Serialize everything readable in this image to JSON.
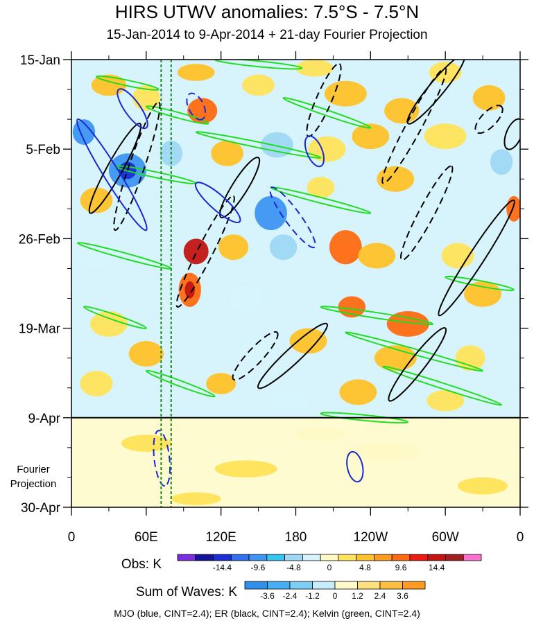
{
  "title": "HIRS UTWV anomalies: 7.5°S - 7.5°N",
  "subtitle": "15-Jan-2014 to 9-Apr-2014 + 21-day Fourier Projection",
  "footer": "MJO (blue, CINT=2.4); ER (black, CINT=2.4); Kelvin (green, CINT=2.4)",
  "projection_label": [
    "Fourier",
    "Projection"
  ],
  "chart_data": {
    "type": "heatmap",
    "title": "HIRS UTWV anomalies: 7.5°S - 7.5°N",
    "subtitle": "15-Jan-2014 to 9-Apr-2014 + 21-day Fourier Projection",
    "x_ticks": [
      {
        "label": "0",
        "lon": 0
      },
      {
        "label": "60E",
        "lon": 60
      },
      {
        "label": "120E",
        "lon": 120
      },
      {
        "label": "180",
        "lon": 180
      },
      {
        "label": "120W",
        "lon": 240
      },
      {
        "label": "60W",
        "lon": 300
      },
      {
        "label": "0",
        "lon": 360
      }
    ],
    "y_ticks": [
      {
        "label": "15-Jan",
        "day": 0
      },
      {
        "label": "5-Feb",
        "day": 21
      },
      {
        "label": "26-Feb",
        "day": 42
      },
      {
        "label": "19-Mar",
        "day": 63
      },
      {
        "label": "9-Apr",
        "day": 84
      },
      {
        "label": "30-Apr",
        "day": 105
      }
    ],
    "x_range": [
      0,
      360
    ],
    "y_range_days": [
      0,
      105
    ],
    "projection_start_day": 84,
    "reference_lons": [
      72,
      80
    ],
    "colorbars": [
      {
        "label": "Obs: K",
        "tick_labels": [
          "-14.4",
          "-9.6",
          "-4.8",
          "0",
          "4.8",
          "9.6",
          "14.4"
        ],
        "colors": [
          "#7b2ee0",
          "#14149a",
          "#1a2fd6",
          "#2f6ff0",
          "#3e95f2",
          "#36c5f0",
          "#9fd7f4",
          "#d7f4fc",
          "#fff9c4",
          "#ffe35a",
          "#ffc229",
          "#ff9a1f",
          "#ff6a10",
          "#ee1b13",
          "#c21414",
          "#a31e1e",
          "#ff6fcf"
        ]
      },
      {
        "label": "Sum of Waves: K",
        "tick_labels": [
          "-3.6",
          "-2.4",
          "-1.2",
          "0",
          "1.2",
          "2.4",
          "3.6"
        ],
        "colors": [
          "#2f8fe9",
          "#48aef3",
          "#7fcdf6",
          "#c7ecfb",
          "#fffbc9",
          "#ffe07e",
          "#ffbf43",
          "#ff9a22"
        ]
      }
    ],
    "contours": [
      {
        "name": "MJO",
        "color": "#1a27d4",
        "cint": 2.4
      },
      {
        "name": "ER",
        "color": "#000000",
        "cint": 2.4
      },
      {
        "name": "Kelvin",
        "color": "#22dd22",
        "cint": 2.4
      }
    ],
    "cells": [
      {
        "lon": 30,
        "day": 6,
        "w": 28,
        "h": 5,
        "v": 4.8
      },
      {
        "lon": 60,
        "day": 9,
        "w": 22,
        "h": 6,
        "v": 2.4
      },
      {
        "lon": 100,
        "day": 3,
        "w": 30,
        "h": 4,
        "v": 4.8
      },
      {
        "lon": 105,
        "day": 12,
        "w": 24,
        "h": 6,
        "v": 9.6
      },
      {
        "lon": 150,
        "day": 6,
        "w": 26,
        "h": 5,
        "v": 2.4
      },
      {
        "lon": 195,
        "day": 2,
        "w": 30,
        "h": 4,
        "v": 2.4
      },
      {
        "lon": 220,
        "day": 8,
        "w": 34,
        "h": 6,
        "v": 4.8
      },
      {
        "lon": 265,
        "day": 12,
        "w": 28,
        "h": 6,
        "v": 4.8
      },
      {
        "lon": 300,
        "day": 3,
        "w": 26,
        "h": 5,
        "v": 2.4
      },
      {
        "lon": 335,
        "day": 9,
        "w": 26,
        "h": 6,
        "v": 4.8
      },
      {
        "lon": 10,
        "day": 17,
        "w": 18,
        "h": 6,
        "v": -9.6
      },
      {
        "lon": 45,
        "day": 26,
        "w": 30,
        "h": 8,
        "v": -9.6
      },
      {
        "lon": 45,
        "day": 26,
        "w": 14,
        "h": 4,
        "v": -14.4
      },
      {
        "lon": 80,
        "day": 22,
        "w": 18,
        "h": 6,
        "v": -4.8
      },
      {
        "lon": 125,
        "day": 22,
        "w": 26,
        "h": 6,
        "v": 4.8
      },
      {
        "lon": 165,
        "day": 20,
        "w": 26,
        "h": 6,
        "v": -4.8
      },
      {
        "lon": 205,
        "day": 21,
        "w": 30,
        "h": 6,
        "v": 2.4
      },
      {
        "lon": 240,
        "day": 18,
        "w": 30,
        "h": 6,
        "v": 4.8
      },
      {
        "lon": 300,
        "day": 18,
        "w": 34,
        "h": 6,
        "v": 2.4
      },
      {
        "lon": 345,
        "day": 24,
        "w": 18,
        "h": 6,
        "v": -4.8
      },
      {
        "lon": 20,
        "day": 33,
        "w": 26,
        "h": 6,
        "v": 4.8
      },
      {
        "lon": 120,
        "day": 33,
        "w": 30,
        "h": 6,
        "v": -2.4
      },
      {
        "lon": 160,
        "day": 36,
        "w": 26,
        "h": 8,
        "v": -9.6
      },
      {
        "lon": 200,
        "day": 30,
        "w": 22,
        "h": 5,
        "v": 2.4
      },
      {
        "lon": 260,
        "day": 28,
        "w": 30,
        "h": 6,
        "v": 4.8
      },
      {
        "lon": 355,
        "day": 35,
        "w": 12,
        "h": 6,
        "v": 9.6
      },
      {
        "lon": 100,
        "day": 45,
        "w": 20,
        "h": 6,
        "v": 14.4
      },
      {
        "lon": 130,
        "day": 44,
        "w": 24,
        "h": 6,
        "v": 4.8
      },
      {
        "lon": 170,
        "day": 44,
        "w": 22,
        "h": 6,
        "v": -4.8
      },
      {
        "lon": 220,
        "day": 44,
        "w": 26,
        "h": 8,
        "v": 9.6
      },
      {
        "lon": 245,
        "day": 46,
        "w": 30,
        "h": 6,
        "v": 4.8
      },
      {
        "lon": 20,
        "day": 46,
        "w": 30,
        "h": 6,
        "v": -2.4
      },
      {
        "lon": 310,
        "day": 46,
        "w": 26,
        "h": 6,
        "v": 2.4
      },
      {
        "lon": 95,
        "day": 54,
        "w": 18,
        "h": 8,
        "v": 9.6
      },
      {
        "lon": 95,
        "day": 54,
        "w": 8,
        "h": 4,
        "v": 14.4
      },
      {
        "lon": 140,
        "day": 56,
        "w": 26,
        "h": 6,
        "v": -2.4
      },
      {
        "lon": 225,
        "day": 58,
        "w": 22,
        "h": 5,
        "v": 9.6
      },
      {
        "lon": 270,
        "day": 62,
        "w": 34,
        "h": 6,
        "v": 9.6
      },
      {
        "lon": 330,
        "day": 55,
        "w": 30,
        "h": 6,
        "v": 4.8
      },
      {
        "lon": 30,
        "day": 62,
        "w": 30,
        "h": 6,
        "v": 2.4
      },
      {
        "lon": 190,
        "day": 66,
        "w": 30,
        "h": 6,
        "v": 4.8
      },
      {
        "lon": 60,
        "day": 69,
        "w": 28,
        "h": 6,
        "v": 4.8
      },
      {
        "lon": 150,
        "day": 68,
        "w": 30,
        "h": 6,
        "v": -2.4
      },
      {
        "lon": 260,
        "day": 70,
        "w": 34,
        "h": 6,
        "v": 4.8
      },
      {
        "lon": 320,
        "day": 70,
        "w": 24,
        "h": 6,
        "v": 2.4
      },
      {
        "lon": 20,
        "day": 76,
        "w": 26,
        "h": 6,
        "v": 2.4
      },
      {
        "lon": 120,
        "day": 76,
        "w": 24,
        "h": 5,
        "v": 4.8
      },
      {
        "lon": 230,
        "day": 78,
        "w": 30,
        "h": 6,
        "v": 4.8
      },
      {
        "lon": 300,
        "day": 80,
        "w": 30,
        "h": 5,
        "v": 2.4
      },
      {
        "lon": 175,
        "day": 80,
        "w": 30,
        "h": 5,
        "v": -2.4
      },
      {
        "lon": 60,
        "day": 90,
        "w": 40,
        "h": 4,
        "v": 1.2
      },
      {
        "lon": 140,
        "day": 96,
        "w": 50,
        "h": 4,
        "v": 1.2
      },
      {
        "lon": 250,
        "day": 92,
        "w": 60,
        "h": 4,
        "v": -1.2
      },
      {
        "lon": 330,
        "day": 100,
        "w": 40,
        "h": 4,
        "v": 1.2
      },
      {
        "lon": 100,
        "day": 103,
        "w": 40,
        "h": 3,
        "v": 2.4
      },
      {
        "lon": 200,
        "day": 88,
        "w": 40,
        "h": 3,
        "v": -1.2
      }
    ],
    "lines": [
      {
        "wave": "Kelvin",
        "dashed": false,
        "points": [
          [
            10,
            58
          ],
          [
            60,
            63
          ]
        ]
      },
      {
        "wave": "Kelvin",
        "dashed": false,
        "points": [
          [
            5,
            43
          ],
          [
            80,
            49
          ]
        ]
      },
      {
        "wave": "Kelvin",
        "dashed": false,
        "points": [
          [
            20,
            4
          ],
          [
            70,
            7
          ]
        ]
      },
      {
        "wave": "Kelvin",
        "dashed": false,
        "points": [
          [
            60,
            11
          ],
          [
            110,
            15
          ]
        ]
      },
      {
        "wave": "Kelvin",
        "dashed": false,
        "points": [
          [
            100,
            17
          ],
          [
            200,
            23
          ]
        ]
      },
      {
        "wave": "Kelvin",
        "dashed": false,
        "points": [
          [
            160,
            30
          ],
          [
            240,
            36
          ]
        ]
      },
      {
        "wave": "Kelvin",
        "dashed": false,
        "points": [
          [
            170,
            9
          ],
          [
            240,
            16
          ]
        ]
      },
      {
        "wave": "Kelvin",
        "dashed": false,
        "points": [
          [
            35,
            25
          ],
          [
            100,
            29
          ]
        ]
      },
      {
        "wave": "Kelvin",
        "dashed": false,
        "points": [
          [
            220,
            64
          ],
          [
            330,
            73
          ]
        ]
      },
      {
        "wave": "Kelvin",
        "dashed": false,
        "points": [
          [
            200,
            58
          ],
          [
            290,
            62
          ]
        ]
      },
      {
        "wave": "Kelvin",
        "dashed": false,
        "points": [
          [
            300,
            51
          ],
          [
            355,
            54
          ]
        ]
      },
      {
        "wave": "Kelvin",
        "dashed": false,
        "points": [
          [
            60,
            73
          ],
          [
            115,
            79
          ]
        ]
      },
      {
        "wave": "Kelvin",
        "dashed": false,
        "points": [
          [
            250,
            72
          ],
          [
            345,
            81
          ]
        ]
      },
      {
        "wave": "Kelvin",
        "dashed": false,
        "points": [
          [
            200,
            83
          ],
          [
            270,
            85
          ]
        ]
      },
      {
        "wave": "Kelvin",
        "dashed": false,
        "points": [
          [
            115,
            0
          ],
          [
            185,
            2
          ]
        ]
      },
      {
        "wave": "ER",
        "dashed": true,
        "points": [
          [
            35,
            40
          ],
          [
            70,
            10
          ]
        ]
      },
      {
        "wave": "ER",
        "dashed": false,
        "points": [
          [
            15,
            36
          ],
          [
            55,
            15
          ]
        ]
      },
      {
        "wave": "ER",
        "dashed": true,
        "points": [
          [
            85,
            58
          ],
          [
            130,
            32
          ]
        ]
      },
      {
        "wave": "ER",
        "dashed": false,
        "points": [
          [
            120,
            37
          ],
          [
            150,
            23
          ]
        ]
      },
      {
        "wave": "ER",
        "dashed": true,
        "points": [
          [
            265,
            47
          ],
          [
            305,
            25
          ]
        ]
      },
      {
        "wave": "ER",
        "dashed": false,
        "points": [
          [
            295,
            60
          ],
          [
            355,
            33
          ]
        ]
      },
      {
        "wave": "ER",
        "dashed": true,
        "points": [
          [
            250,
            29
          ],
          [
            300,
            2
          ]
        ]
      },
      {
        "wave": "ER",
        "dashed": false,
        "points": [
          [
            270,
            15
          ],
          [
            315,
            -1
          ]
        ]
      },
      {
        "wave": "ER",
        "dashed": true,
        "points": [
          [
            190,
            18
          ],
          [
            215,
            1
          ]
        ]
      },
      {
        "wave": "ER",
        "dashed": false,
        "points": [
          [
            150,
            77
          ],
          [
            205,
            62
          ]
        ]
      },
      {
        "wave": "ER",
        "dashed": true,
        "points": [
          [
            130,
            75
          ],
          [
            165,
            64
          ]
        ]
      },
      {
        "wave": "ER",
        "dashed": false,
        "points": [
          [
            255,
            80
          ],
          [
            300,
            63
          ]
        ]
      },
      {
        "wave": "ER",
        "dashed": true,
        "points": [
          [
            325,
            17
          ],
          [
            345,
            11
          ]
        ]
      },
      {
        "wave": "ER",
        "dashed": false,
        "points": [
          [
            350,
            21
          ],
          [
            360,
            14
          ]
        ]
      },
      {
        "wave": "MJO",
        "dashed": false,
        "points": [
          [
            5,
            14
          ],
          [
            60,
            40
          ]
        ]
      },
      {
        "wave": "MJO",
        "dashed": false,
        "points": [
          [
            100,
            29
          ],
          [
            135,
            38
          ]
        ]
      },
      {
        "wave": "MJO",
        "dashed": true,
        "points": [
          [
            160,
            30
          ],
          [
            195,
            44
          ]
        ]
      },
      {
        "wave": "MJO",
        "dashed": false,
        "points": [
          [
            38,
            7
          ],
          [
            60,
            16
          ]
        ]
      },
      {
        "wave": "MJO",
        "dashed": false,
        "points": [
          [
            190,
            18
          ],
          [
            200,
            25
          ]
        ]
      },
      {
        "wave": "MJO",
        "dashed": false,
        "points": [
          [
            225,
            92
          ],
          [
            230,
            99
          ]
        ]
      },
      {
        "wave": "MJO",
        "dashed": true,
        "points": [
          [
            70,
            87
          ],
          [
            75,
            100
          ]
        ]
      },
      {
        "wave": "MJO",
        "dashed": true,
        "points": [
          [
            95,
            8
          ],
          [
            105,
            14
          ]
        ]
      }
    ]
  }
}
